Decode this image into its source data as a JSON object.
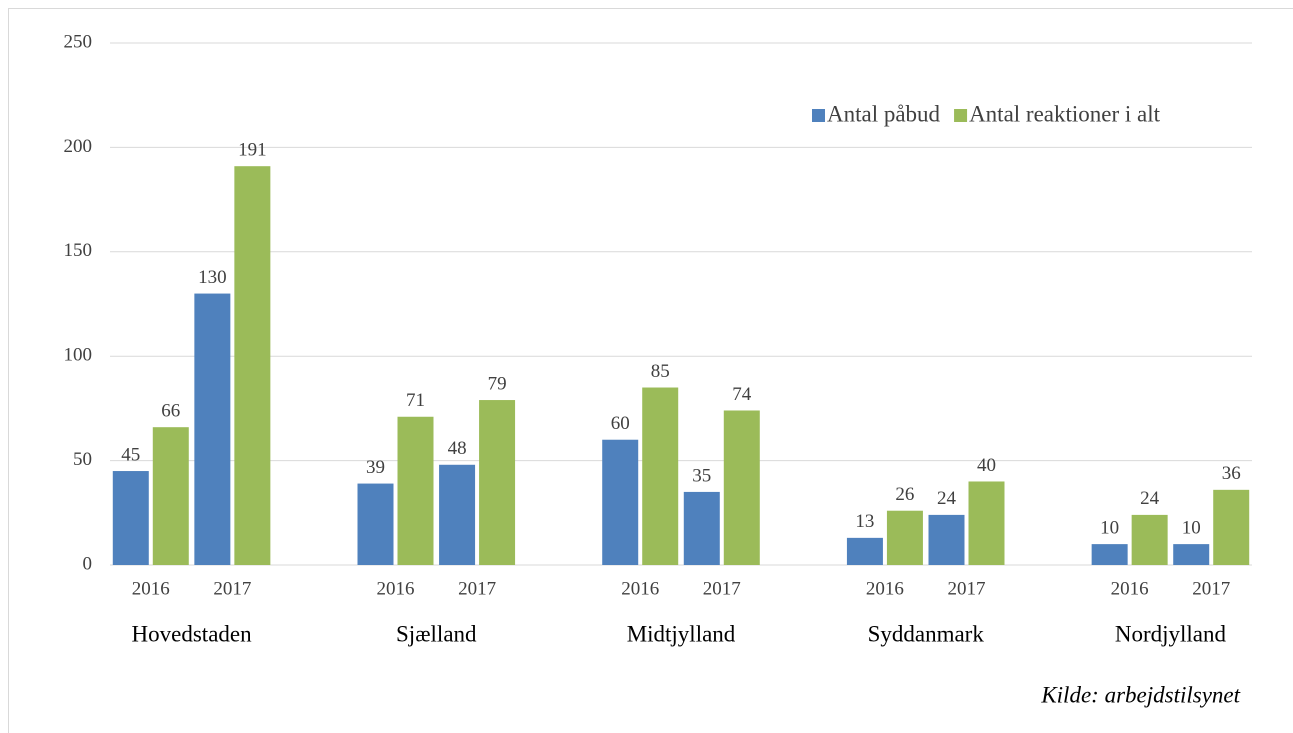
{
  "chart_data": {
    "type": "bar",
    "groups": [
      "Hovedstaden",
      "Sjælland",
      "Midtjylland",
      "Syddanmark",
      "Nordjylland"
    ],
    "categories": [
      "2016",
      "2017",
      "2016",
      "2017",
      "2016",
      "2017",
      "2016",
      "2017",
      "2016",
      "2017"
    ],
    "series": [
      {
        "name": "Antal påbud",
        "color": "#4f81bd",
        "values": [
          45,
          130,
          39,
          48,
          60,
          35,
          13,
          24,
          10,
          10
        ]
      },
      {
        "name": "Antal reaktioner i alt",
        "color": "#9bbb59",
        "values": [
          66,
          191,
          71,
          79,
          85,
          74,
          26,
          40,
          24,
          36
        ]
      }
    ],
    "ylim": [
      0,
      250
    ],
    "yticks": [
      0,
      50,
      100,
      150,
      200,
      250
    ],
    "grid": true,
    "source": "Kilde: arbejdstilsynet"
  }
}
